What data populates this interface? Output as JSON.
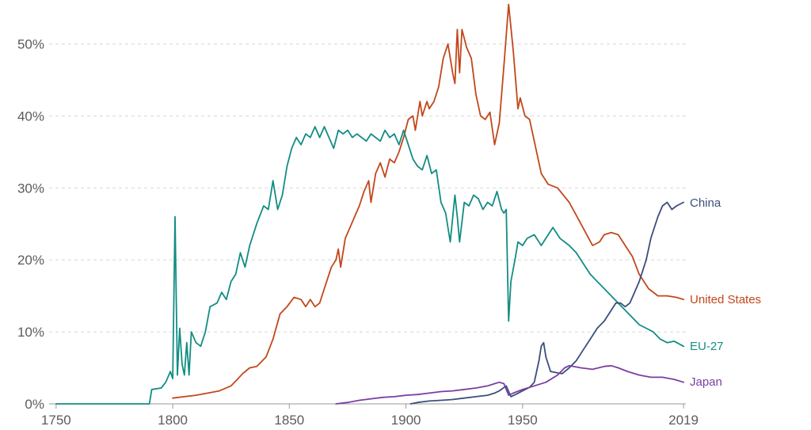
{
  "chart_data": {
    "type": "line",
    "title": "",
    "xlabel": "",
    "ylabel": "",
    "xlim": [
      1747,
      2020
    ],
    "ylim": [
      0,
      55
    ],
    "grid": true,
    "legend": "inline-right",
    "x_ticks": [
      1750,
      1800,
      1850,
      1900,
      1950,
      2019
    ],
    "x_tick_labels": [
      "1750",
      "1800",
      "1850",
      "1900",
      "1950",
      "2019"
    ],
    "y_ticks": [
      0,
      10,
      20,
      30,
      40,
      50
    ],
    "y_tick_labels": [
      "0%",
      "10%",
      "20%",
      "30%",
      "40%",
      "50%"
    ],
    "series": [
      {
        "name": "United States",
        "color": "#c2471b",
        "points": [
          [
            1800,
            0.8
          ],
          [
            1805,
            1.0
          ],
          [
            1810,
            1.2
          ],
          [
            1815,
            1.5
          ],
          [
            1820,
            1.8
          ],
          [
            1825,
            2.5
          ],
          [
            1828,
            3.5
          ],
          [
            1830,
            4.2
          ],
          [
            1833,
            5.0
          ],
          [
            1836,
            5.2
          ],
          [
            1840,
            6.5
          ],
          [
            1843,
            9.0
          ],
          [
            1846,
            12.5
          ],
          [
            1849,
            13.5
          ],
          [
            1852,
            14.8
          ],
          [
            1855,
            14.5
          ],
          [
            1857,
            13.5
          ],
          [
            1859,
            14.5
          ],
          [
            1861,
            13.5
          ],
          [
            1863,
            14.0
          ],
          [
            1865,
            16.0
          ],
          [
            1868,
            19.0
          ],
          [
            1870,
            20.0
          ],
          [
            1871,
            21.5
          ],
          [
            1872,
            19.0
          ],
          [
            1874,
            23.0
          ],
          [
            1876,
            24.5
          ],
          [
            1878,
            26.0
          ],
          [
            1880,
            27.5
          ],
          [
            1882,
            29.5
          ],
          [
            1884,
            31.0
          ],
          [
            1885,
            28.0
          ],
          [
            1887,
            32.0
          ],
          [
            1889,
            33.5
          ],
          [
            1891,
            31.5
          ],
          [
            1893,
            34.0
          ],
          [
            1895,
            33.5
          ],
          [
            1897,
            35.0
          ],
          [
            1899,
            37.0
          ],
          [
            1901,
            39.5
          ],
          [
            1903,
            40.0
          ],
          [
            1904,
            38.0
          ],
          [
            1906,
            42.0
          ],
          [
            1907,
            40.0
          ],
          [
            1909,
            42.0
          ],
          [
            1910,
            41.0
          ],
          [
            1912,
            42.0
          ],
          [
            1914,
            44.0
          ],
          [
            1916,
            48.0
          ],
          [
            1918,
            50.0
          ],
          [
            1920,
            46.0
          ],
          [
            1921,
            44.5
          ],
          [
            1922,
            52.0
          ],
          [
            1923,
            46.0
          ],
          [
            1924,
            52.0
          ],
          [
            1926,
            49.5
          ],
          [
            1928,
            48.0
          ],
          [
            1930,
            43.0
          ],
          [
            1932,
            40.0
          ],
          [
            1934,
            39.5
          ],
          [
            1936,
            40.5
          ],
          [
            1938,
            36.0
          ],
          [
            1940,
            39.0
          ],
          [
            1942,
            47.0
          ],
          [
            1944,
            55.5
          ],
          [
            1946,
            49.0
          ],
          [
            1948,
            41.0
          ],
          [
            1949,
            42.5
          ],
          [
            1951,
            40.0
          ],
          [
            1953,
            39.5
          ],
          [
            1955,
            36.5
          ],
          [
            1958,
            32.0
          ],
          [
            1961,
            30.5
          ],
          [
            1965,
            30.0
          ],
          [
            1970,
            28.0
          ],
          [
            1975,
            25.0
          ],
          [
            1980,
            22.0
          ],
          [
            1983,
            22.5
          ],
          [
            1985,
            23.5
          ],
          [
            1988,
            23.8
          ],
          [
            1991,
            23.5
          ],
          [
            1994,
            22.0
          ],
          [
            1997,
            20.5
          ],
          [
            2000,
            18.0
          ],
          [
            2004,
            16.0
          ],
          [
            2008,
            15.0
          ],
          [
            2012,
            15.0
          ],
          [
            2016,
            14.8
          ],
          [
            2019,
            14.5
          ]
        ]
      },
      {
        "name": "EU-27",
        "color": "#138d84",
        "points": [
          [
            1750,
            0
          ],
          [
            1790,
            0
          ],
          [
            1791,
            2.0
          ],
          [
            1795,
            2.2
          ],
          [
            1797,
            3.0
          ],
          [
            1799,
            4.5
          ],
          [
            1800,
            3.5
          ],
          [
            1801,
            26.0
          ],
          [
            1802,
            4.0
          ],
          [
            1803,
            10.5
          ],
          [
            1804,
            5.5
          ],
          [
            1805,
            4.0
          ],
          [
            1806,
            8.5
          ],
          [
            1807,
            4.0
          ],
          [
            1808,
            10.0
          ],
          [
            1810,
            8.5
          ],
          [
            1812,
            8.0
          ],
          [
            1814,
            10.0
          ],
          [
            1816,
            13.5
          ],
          [
            1819,
            14.0
          ],
          [
            1821,
            15.5
          ],
          [
            1823,
            14.5
          ],
          [
            1825,
            17.0
          ],
          [
            1827,
            18.0
          ],
          [
            1829,
            21.0
          ],
          [
            1831,
            19.0
          ],
          [
            1833,
            22.0
          ],
          [
            1836,
            25.0
          ],
          [
            1839,
            27.5
          ],
          [
            1841,
            27.0
          ],
          [
            1843,
            31.0
          ],
          [
            1845,
            27.0
          ],
          [
            1847,
            29.0
          ],
          [
            1849,
            33.0
          ],
          [
            1851,
            35.5
          ],
          [
            1853,
            37.0
          ],
          [
            1855,
            36.0
          ],
          [
            1857,
            37.5
          ],
          [
            1859,
            37.0
          ],
          [
            1861,
            38.5
          ],
          [
            1863,
            37.0
          ],
          [
            1865,
            38.5
          ],
          [
            1867,
            37.0
          ],
          [
            1869,
            35.5
          ],
          [
            1871,
            38.0
          ],
          [
            1873,
            37.5
          ],
          [
            1875,
            38.0
          ],
          [
            1877,
            37.0
          ],
          [
            1879,
            37.5
          ],
          [
            1881,
            37.0
          ],
          [
            1883,
            36.5
          ],
          [
            1885,
            37.5
          ],
          [
            1887,
            37.0
          ],
          [
            1889,
            36.5
          ],
          [
            1891,
            38.0
          ],
          [
            1893,
            37.0
          ],
          [
            1895,
            37.5
          ],
          [
            1897,
            36.0
          ],
          [
            1899,
            38.0
          ],
          [
            1901,
            36.0
          ],
          [
            1903,
            34.0
          ],
          [
            1905,
            33.0
          ],
          [
            1907,
            32.5
          ],
          [
            1909,
            34.5
          ],
          [
            1911,
            32.0
          ],
          [
            1913,
            32.5
          ],
          [
            1915,
            28.0
          ],
          [
            1917,
            26.5
          ],
          [
            1919,
            22.5
          ],
          [
            1921,
            29.0
          ],
          [
            1922,
            26.0
          ],
          [
            1923,
            22.5
          ],
          [
            1925,
            28.0
          ],
          [
            1927,
            27.5
          ],
          [
            1929,
            29.0
          ],
          [
            1931,
            28.5
          ],
          [
            1933,
            27.0
          ],
          [
            1935,
            28.0
          ],
          [
            1937,
            27.5
          ],
          [
            1939,
            29.5
          ],
          [
            1941,
            27.0
          ],
          [
            1942,
            26.5
          ],
          [
            1943,
            27.0
          ],
          [
            1944,
            11.5
          ],
          [
            1945,
            17.0
          ],
          [
            1947,
            20.5
          ],
          [
            1948,
            22.5
          ],
          [
            1950,
            22.0
          ],
          [
            1952,
            23.0
          ],
          [
            1955,
            23.5
          ],
          [
            1958,
            22.0
          ],
          [
            1961,
            23.5
          ],
          [
            1963,
            24.5
          ],
          [
            1966,
            23.0
          ],
          [
            1970,
            22.0
          ],
          [
            1973,
            21.0
          ],
          [
            1976,
            19.5
          ],
          [
            1979,
            18.0
          ],
          [
            1982,
            17.0
          ],
          [
            1985,
            16.0
          ],
          [
            1988,
            15.0
          ],
          [
            1991,
            14.0
          ],
          [
            1994,
            13.0
          ],
          [
            1997,
            12.0
          ],
          [
            2000,
            11.0
          ],
          [
            2003,
            10.5
          ],
          [
            2006,
            10.0
          ],
          [
            2009,
            9.0
          ],
          [
            2012,
            8.5
          ],
          [
            2015,
            8.7
          ],
          [
            2019,
            8.0
          ]
        ]
      },
      {
        "name": "China",
        "color": "#3b4f7a",
        "points": [
          [
            1902,
            0
          ],
          [
            1905,
            0.2
          ],
          [
            1910,
            0.4
          ],
          [
            1915,
            0.5
          ],
          [
            1920,
            0.6
          ],
          [
            1925,
            0.8
          ],
          [
            1930,
            1.0
          ],
          [
            1935,
            1.2
          ],
          [
            1938,
            1.5
          ],
          [
            1940,
            1.8
          ],
          [
            1943,
            2.5
          ],
          [
            1945,
            1.0
          ],
          [
            1947,
            1.3
          ],
          [
            1950,
            1.8
          ],
          [
            1953,
            2.3
          ],
          [
            1955,
            3.0
          ],
          [
            1957,
            6.0
          ],
          [
            1958,
            8.0
          ],
          [
            1959,
            8.5
          ],
          [
            1960,
            6.5
          ],
          [
            1962,
            4.5
          ],
          [
            1965,
            4.3
          ],
          [
            1967,
            4.2
          ],
          [
            1970,
            5.0
          ],
          [
            1973,
            6.0
          ],
          [
            1976,
            7.5
          ],
          [
            1979,
            9.0
          ],
          [
            1982,
            10.5
          ],
          [
            1985,
            11.5
          ],
          [
            1988,
            13.0
          ],
          [
            1990,
            14.0
          ],
          [
            1992,
            14.0
          ],
          [
            1994,
            13.5
          ],
          [
            1996,
            14.0
          ],
          [
            1998,
            15.5
          ],
          [
            2000,
            17.0
          ],
          [
            2003,
            20.0
          ],
          [
            2005,
            23.0
          ],
          [
            2008,
            26.0
          ],
          [
            2010,
            27.5
          ],
          [
            2012,
            28.0
          ],
          [
            2014,
            27.0
          ],
          [
            2016,
            27.5
          ],
          [
            2019,
            28.0
          ]
        ]
      },
      {
        "name": "Japan",
        "color": "#7a3fa0",
        "points": [
          [
            1870,
            0
          ],
          [
            1875,
            0.2
          ],
          [
            1880,
            0.5
          ],
          [
            1885,
            0.7
          ],
          [
            1890,
            0.9
          ],
          [
            1895,
            1.0
          ],
          [
            1900,
            1.2
          ],
          [
            1905,
            1.3
          ],
          [
            1910,
            1.5
          ],
          [
            1915,
            1.7
          ],
          [
            1920,
            1.8
          ],
          [
            1925,
            2.0
          ],
          [
            1930,
            2.2
          ],
          [
            1935,
            2.5
          ],
          [
            1938,
            2.8
          ],
          [
            1940,
            3.0
          ],
          [
            1942,
            2.8
          ],
          [
            1944,
            1.2
          ],
          [
            1946,
            1.5
          ],
          [
            1950,
            2.0
          ],
          [
            1955,
            2.5
          ],
          [
            1960,
            3.0
          ],
          [
            1965,
            4.0
          ],
          [
            1968,
            5.0
          ],
          [
            1970,
            5.3
          ],
          [
            1975,
            5.0
          ],
          [
            1980,
            4.8
          ],
          [
            1985,
            5.2
          ],
          [
            1988,
            5.3
          ],
          [
            1991,
            5.0
          ],
          [
            1995,
            4.5
          ],
          [
            2000,
            4.0
          ],
          [
            2005,
            3.7
          ],
          [
            2010,
            3.7
          ],
          [
            2015,
            3.4
          ],
          [
            2019,
            3.0
          ]
        ]
      }
    ]
  }
}
